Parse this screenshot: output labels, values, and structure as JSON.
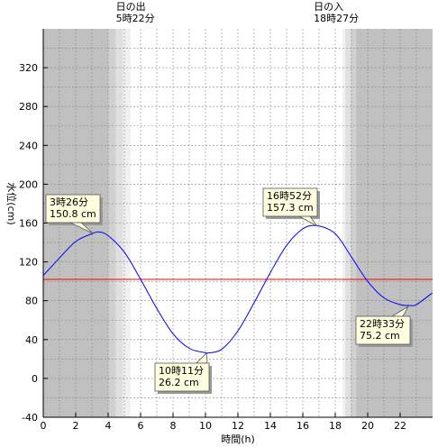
{
  "chart_data": {
    "type": "line",
    "xlabel": "時間(h)",
    "ylabel": "水位(cm)",
    "xlim": [
      0,
      24
    ],
    "ylim": [
      -40,
      360
    ],
    "x_ticks": [
      0,
      2,
      4,
      6,
      8,
      10,
      12,
      14,
      16,
      18,
      20,
      22
    ],
    "y_ticks": [
      -40,
      0,
      40,
      80,
      120,
      160,
      200,
      240,
      280,
      320
    ],
    "grid": true,
    "reference_line": {
      "value": 102,
      "color": "#ff0000"
    },
    "line_color": "#0000ff",
    "series": [
      {
        "x": [
          0,
          1,
          2,
          3,
          3.43,
          4,
          5,
          6,
          7,
          8,
          9,
          10,
          10.18,
          11,
          12,
          13,
          14,
          15,
          16,
          16.87,
          18,
          19,
          20,
          21,
          22,
          22.55,
          23,
          23.98
        ],
        "values": [
          106,
          124,
          141,
          149,
          150.8,
          147,
          130,
          102,
          72,
          46,
          31,
          26.5,
          26.2,
          30,
          49,
          78,
          109,
          137,
          154,
          157.3,
          149,
          125,
          100,
          83,
          76,
          75.2,
          76,
          88
        ]
      }
    ],
    "sunrise": {
      "label": "日の出",
      "time": "5時22分",
      "hour": 5.37
    },
    "sunset": {
      "label": "日の入",
      "time": "18時27分",
      "hour": 18.45
    },
    "shading_colors": [
      "#c0c0c0",
      "#d0d0d0",
      "#e0e0e0",
      "#f0f0f0"
    ],
    "annotations": [
      {
        "time": "3時26分",
        "level": "150.8 cm",
        "x": 3.43,
        "y": 150.8
      },
      {
        "time": "10時11分",
        "level": "26.2 cm",
        "x": 10.18,
        "y": 26.2
      },
      {
        "time": "16時52分",
        "level": "157.3 cm",
        "x": 16.87,
        "y": 157.3
      },
      {
        "time": "22時33分",
        "level": "75.2 cm",
        "x": 22.55,
        "y": 75.2
      }
    ]
  }
}
